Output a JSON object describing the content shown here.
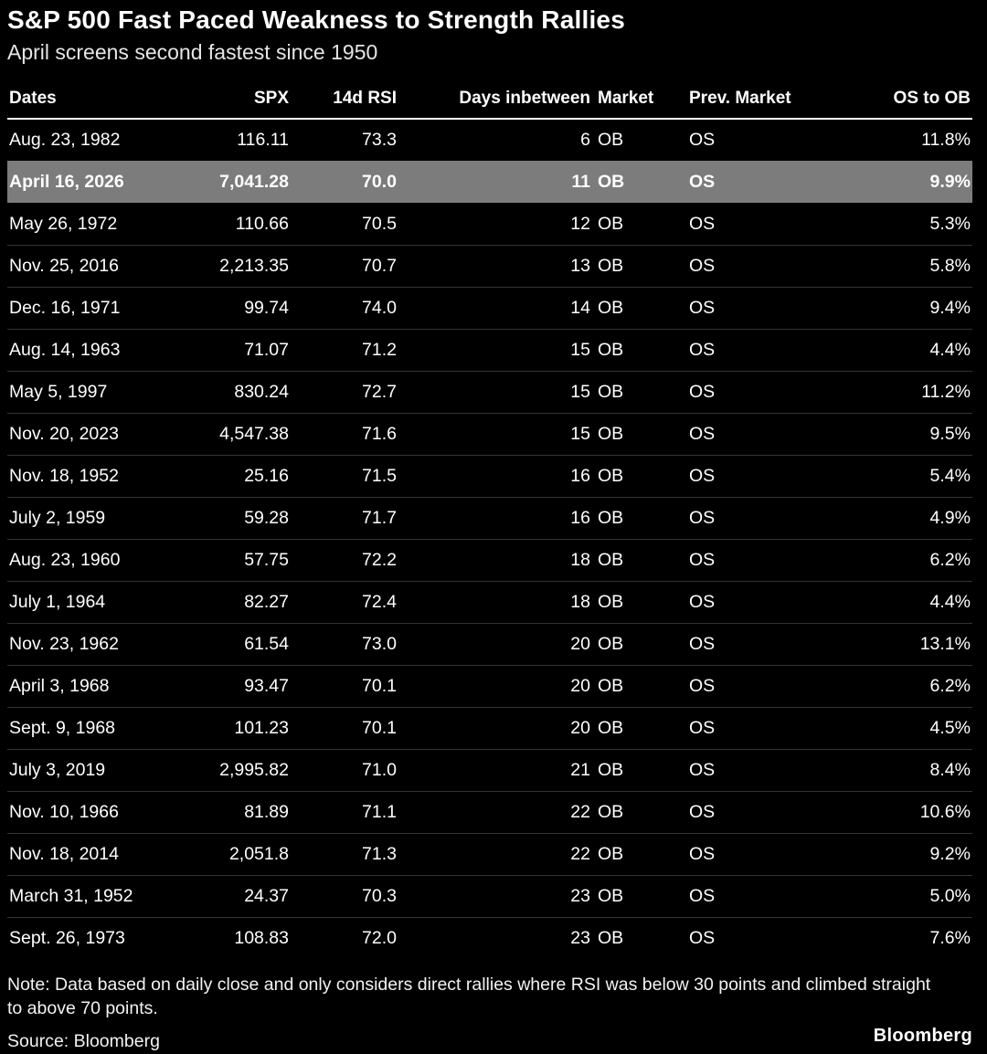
{
  "header": {
    "title": "S&P 500 Fast Paced Weakness to Strength Rallies",
    "subtitle": "April screens second fastest since 1950"
  },
  "footer": {
    "note": "Note: Data based on daily close and only considers direct rallies where RSI was below 30 points and climbed straight to above 70 points.",
    "source": "Source: Bloomberg",
    "brand": "Bloomberg"
  },
  "colors": {
    "background": "#000000",
    "text": "#ffffff",
    "highlight_row_bg": "#7c7c7c",
    "row_divider": "#333333",
    "header_underline": "#ffffff"
  },
  "chart_data": {
    "type": "table",
    "title": "S&P 500 Fast Paced Weakness to Strength Rallies",
    "subtitle": "April screens second fastest since 1950",
    "columns": [
      "Dates",
      "SPX",
      "14d RSI",
      "Days inbetween",
      "Market",
      "Prev. Market",
      "OS to OB"
    ],
    "highlight_row_index": 1,
    "rows": [
      [
        "Aug. 23, 1982",
        "116.11",
        "73.3",
        "6",
        "OB",
        "OS",
        "11.8%"
      ],
      [
        "April 16, 2026",
        "7,041.28",
        "70.0",
        "11",
        "OB",
        "OS",
        "9.9%"
      ],
      [
        "May 26, 1972",
        "110.66",
        "70.5",
        "12",
        "OB",
        "OS",
        "5.3%"
      ],
      [
        "Nov. 25, 2016",
        "2,213.35",
        "70.7",
        "13",
        "OB",
        "OS",
        "5.8%"
      ],
      [
        "Dec. 16, 1971",
        "99.74",
        "74.0",
        "14",
        "OB",
        "OS",
        "9.4%"
      ],
      [
        "Aug. 14, 1963",
        "71.07",
        "71.2",
        "15",
        "OB",
        "OS",
        "4.4%"
      ],
      [
        "May 5, 1997",
        "830.24",
        "72.7",
        "15",
        "OB",
        "OS",
        "11.2%"
      ],
      [
        "Nov. 20, 2023",
        "4,547.38",
        "71.6",
        "15",
        "OB",
        "OS",
        "9.5%"
      ],
      [
        "Nov. 18, 1952",
        "25.16",
        "71.5",
        "16",
        "OB",
        "OS",
        "5.4%"
      ],
      [
        "July 2, 1959",
        "59.28",
        "71.7",
        "16",
        "OB",
        "OS",
        "4.9%"
      ],
      [
        "Aug. 23, 1960",
        "57.75",
        "72.2",
        "18",
        "OB",
        "OS",
        "6.2%"
      ],
      [
        "July 1, 1964",
        "82.27",
        "72.4",
        "18",
        "OB",
        "OS",
        "4.4%"
      ],
      [
        "Nov. 23, 1962",
        "61.54",
        "73.0",
        "20",
        "OB",
        "OS",
        "13.1%"
      ],
      [
        "April 3, 1968",
        "93.47",
        "70.1",
        "20",
        "OB",
        "OS",
        "6.2%"
      ],
      [
        "Sept. 9, 1968",
        "101.23",
        "70.1",
        "20",
        "OB",
        "OS",
        "4.5%"
      ],
      [
        "July 3, 2019",
        "2,995.82",
        "71.0",
        "21",
        "OB",
        "OS",
        "8.4%"
      ],
      [
        "Nov. 10, 1966",
        "81.89",
        "71.1",
        "22",
        "OB",
        "OS",
        "10.6%"
      ],
      [
        "Nov. 18, 2014",
        "2,051.8",
        "71.3",
        "22",
        "OB",
        "OS",
        "9.2%"
      ],
      [
        "March 31, 1952",
        "24.37",
        "70.3",
        "23",
        "OB",
        "OS",
        "5.0%"
      ],
      [
        "Sept. 26, 1973",
        "108.83",
        "72.0",
        "23",
        "OB",
        "OS",
        "7.6%"
      ]
    ]
  }
}
